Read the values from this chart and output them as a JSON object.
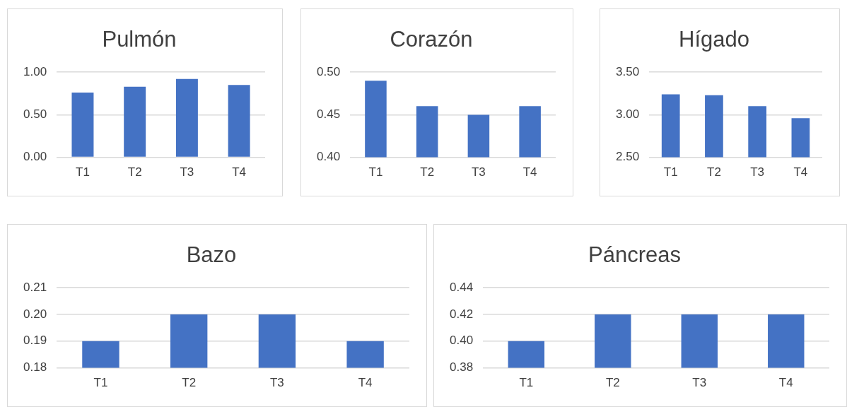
{
  "chart_data": [
    {
      "type": "bar",
      "title": "Pulmón",
      "categories": [
        "T1",
        "T2",
        "T3",
        "T4"
      ],
      "values": [
        0.76,
        0.83,
        0.92,
        0.85
      ],
      "color": "#4472c4",
      "ylim": [
        0,
        1
      ],
      "yticks": [
        {
          "value": 0,
          "label": "0.00"
        },
        {
          "value": 0.5,
          "label": "0.50"
        },
        {
          "value": 1,
          "label": "1.00"
        }
      ],
      "grid": "y"
    },
    {
      "type": "bar",
      "title": "Corazón",
      "categories": [
        "T1",
        "T2",
        "T3",
        "T4"
      ],
      "values": [
        0.49,
        0.46,
        0.45,
        0.46
      ],
      "color": "#4472c4",
      "ylim": [
        0.4,
        0.5
      ],
      "yticks": [
        {
          "value": 0.4,
          "label": "0.40"
        },
        {
          "value": 0.45,
          "label": "0.45"
        },
        {
          "value": 0.5,
          "label": "0.50"
        }
      ],
      "grid": "y"
    },
    {
      "type": "bar",
      "title": "Hígado",
      "categories": [
        "T1",
        "T2",
        "T3",
        "T4"
      ],
      "values": [
        3.24,
        3.23,
        3.1,
        2.96
      ],
      "color": "#4472c4",
      "ylim": [
        2.5,
        3.5
      ],
      "yticks": [
        {
          "value": 2.5,
          "label": "2.50"
        },
        {
          "value": 3,
          "label": "3.00"
        },
        {
          "value": 3.5,
          "label": "3.50"
        }
      ],
      "grid": "y"
    },
    {
      "type": "bar",
      "title": "Bazo",
      "categories": [
        "T1",
        "T2",
        "T3",
        "T4"
      ],
      "values": [
        0.19,
        0.2,
        0.2,
        0.19
      ],
      "color": "#4472c4",
      "ylim": [
        0.18,
        0.21
      ],
      "yticks": [
        {
          "value": 0.18,
          "label": "0.18"
        },
        {
          "value": 0.19,
          "label": "0.19"
        },
        {
          "value": 0.2,
          "label": "0.20"
        },
        {
          "value": 0.21,
          "label": "0.21"
        }
      ],
      "grid": "y"
    },
    {
      "type": "bar",
      "title": "Páncreas",
      "categories": [
        "T1",
        "T2",
        "T3",
        "T4"
      ],
      "values": [
        0.4,
        0.42,
        0.42,
        0.42
      ],
      "color": "#4472c4",
      "ylim": [
        0.38,
        0.44
      ],
      "yticks": [
        {
          "value": 0.38,
          "label": "0.38"
        },
        {
          "value": 0.4,
          "label": "0.40"
        },
        {
          "value": 0.42,
          "label": "0.42"
        },
        {
          "value": 0.44,
          "label": "0.44"
        }
      ],
      "grid": "y"
    }
  ]
}
